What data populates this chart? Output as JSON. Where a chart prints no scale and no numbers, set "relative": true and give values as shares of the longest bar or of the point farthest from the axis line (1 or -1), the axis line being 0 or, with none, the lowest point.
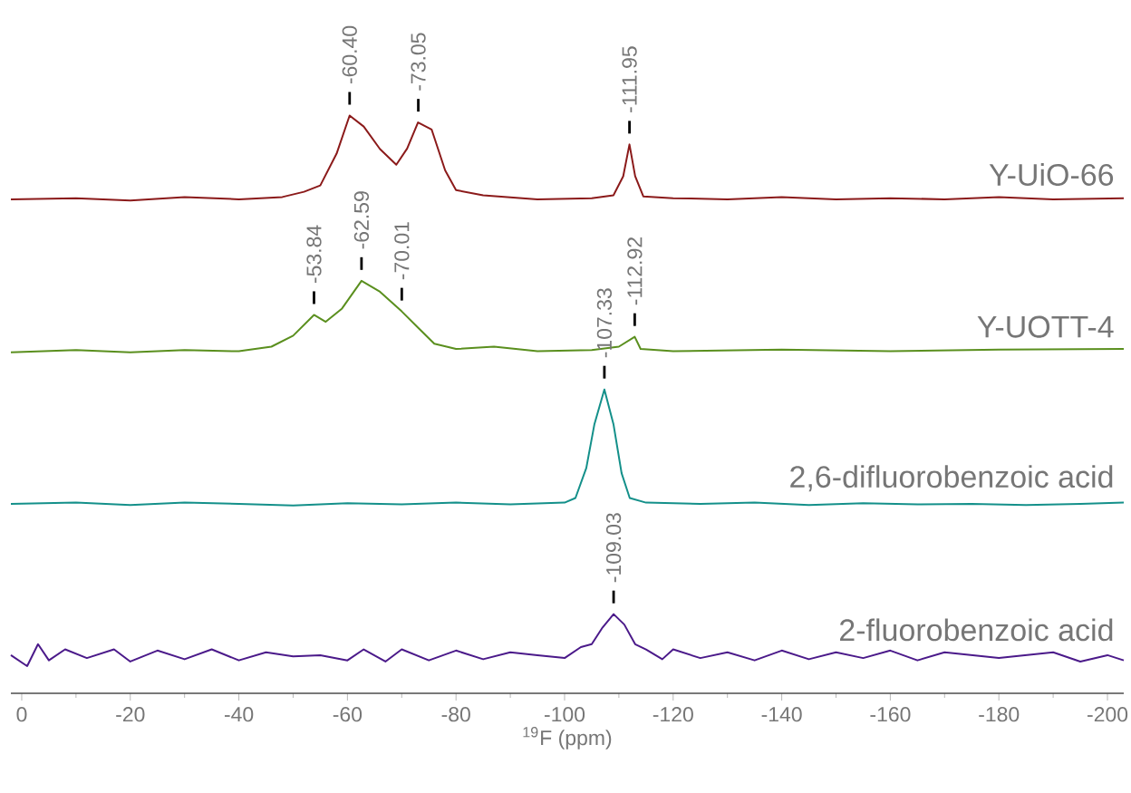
{
  "chart_data": {
    "type": "line",
    "relative": true,
    "xlabel": "$^{19}$F (ppm)",
    "xlim": [
      2,
      -203
    ],
    "xticks": [
      0,
      -20,
      -40,
      -60,
      -80,
      -100,
      -120,
      -140,
      -160,
      -180,
      -200
    ],
    "series": [
      {
        "name": "Y-UiO-66",
        "color": "#8b1a1a",
        "x": [
          2,
          -10,
          -20,
          -30,
          -40,
          -48,
          -52,
          -55,
          -58,
          -60.4,
          -63,
          -66,
          -69,
          -71,
          -73,
          -75.5,
          -78,
          -80,
          -85,
          -95,
          -105,
          -109,
          -110.8,
          -111.95,
          -113,
          -114.5,
          -120,
          -130,
          -140,
          -150,
          -160,
          -170,
          -180,
          -190,
          -203
        ],
        "values": [
          0.855,
          0.857,
          0.853,
          0.859,
          0.855,
          0.859,
          0.868,
          0.879,
          0.934,
          1.0,
          0.981,
          0.942,
          0.915,
          0.943,
          0.988,
          0.976,
          0.905,
          0.871,
          0.862,
          0.855,
          0.857,
          0.862,
          0.895,
          0.95,
          0.895,
          0.86,
          0.857,
          0.855,
          0.859,
          0.855,
          0.857,
          0.855,
          0.859,
          0.855,
          0.857
        ]
      },
      {
        "name": "Y-UOTT-4",
        "color": "#5a8f1e",
        "x": [
          2,
          -10,
          -20,
          -30,
          -40,
          -46,
          -50,
          -53.84,
          -56,
          -59,
          -62.59,
          -66,
          -70,
          -73,
          -76,
          -80,
          -87,
          -95,
          -105,
          -110,
          -112.92,
          -114,
          -120,
          -140,
          -160,
          -180,
          -203
        ],
        "values": [
          0.59,
          0.594,
          0.59,
          0.594,
          0.592,
          0.6,
          0.619,
          0.655,
          0.643,
          0.666,
          0.714,
          0.695,
          0.661,
          0.633,
          0.605,
          0.596,
          0.6,
          0.592,
          0.594,
          0.6,
          0.617,
          0.596,
          0.592,
          0.595,
          0.592,
          0.595,
          0.596
        ]
      },
      {
        "name": "2,6-difluorobenzoic acid",
        "color": "#14908a",
        "x": [
          2,
          -10,
          -20,
          -30,
          -40,
          -50,
          -60,
          -70,
          -80,
          -90,
          -100,
          -102,
          -104,
          -105.5,
          -107.33,
          -109,
          -110.5,
          -112,
          -115,
          -125,
          -135,
          -145,
          -155,
          -165,
          -175,
          -185,
          -195,
          -203
        ],
        "values": [
          0.328,
          0.33,
          0.326,
          0.33,
          0.328,
          0.325,
          0.329,
          0.327,
          0.33,
          0.327,
          0.33,
          0.338,
          0.39,
          0.466,
          0.526,
          0.466,
          0.381,
          0.338,
          0.33,
          0.328,
          0.33,
          0.326,
          0.329,
          0.327,
          0.328,
          0.326,
          0.328,
          0.33
        ]
      },
      {
        "name": "2-fluorobenzoic acid",
        "color": "#4b1a8a",
        "x": [
          2,
          -1,
          -3,
          -5,
          -8,
          -12,
          -17,
          -20,
          -25,
          -30,
          -35,
          -40,
          -45,
          -50,
          -55,
          -60,
          -63,
          -67,
          -70,
          -75,
          -80,
          -85,
          -90,
          -95,
          -100,
          -103,
          -105,
          -107,
          -109.03,
          -111,
          -113,
          -115,
          -118,
          -120,
          -125,
          -130,
          -135,
          -140,
          -145,
          -150,
          -155,
          -160,
          -165,
          -170,
          -180,
          -190,
          -195,
          -200,
          -203
        ],
        "values": [
          0.066,
          0.047,
          0.085,
          0.057,
          0.076,
          0.061,
          0.076,
          0.055,
          0.074,
          0.059,
          0.076,
          0.057,
          0.071,
          0.064,
          0.066,
          0.057,
          0.076,
          0.055,
          0.076,
          0.057,
          0.074,
          0.059,
          0.071,
          0.066,
          0.061,
          0.08,
          0.085,
          0.114,
          0.137,
          0.119,
          0.085,
          0.076,
          0.059,
          0.076,
          0.061,
          0.071,
          0.057,
          0.074,
          0.059,
          0.071,
          0.061,
          0.074,
          0.057,
          0.071,
          0.061,
          0.071,
          0.055,
          0.066,
          0.057
        ]
      }
    ],
    "annotations": [
      {
        "text": "-60.40",
        "x": -60.4,
        "y": 1.0
      },
      {
        "text": "-73.05",
        "x": -73.05,
        "y": 0.988
      },
      {
        "text": "-111.95",
        "x": -111.95,
        "y": 0.95
      },
      {
        "text": "-53.84",
        "x": -53.84,
        "y": 0.655
      },
      {
        "text": "-62.59",
        "x": -62.59,
        "y": 0.714
      },
      {
        "text": "-70.01",
        "x": -70.01,
        "y": 0.661
      },
      {
        "text": "-112.92",
        "x": -112.92,
        "y": 0.617
      },
      {
        "text": "-107.33",
        "x": -107.33,
        "y": 0.526
      },
      {
        "text": "-109.03",
        "x": -109.03,
        "y": 0.137
      }
    ]
  }
}
